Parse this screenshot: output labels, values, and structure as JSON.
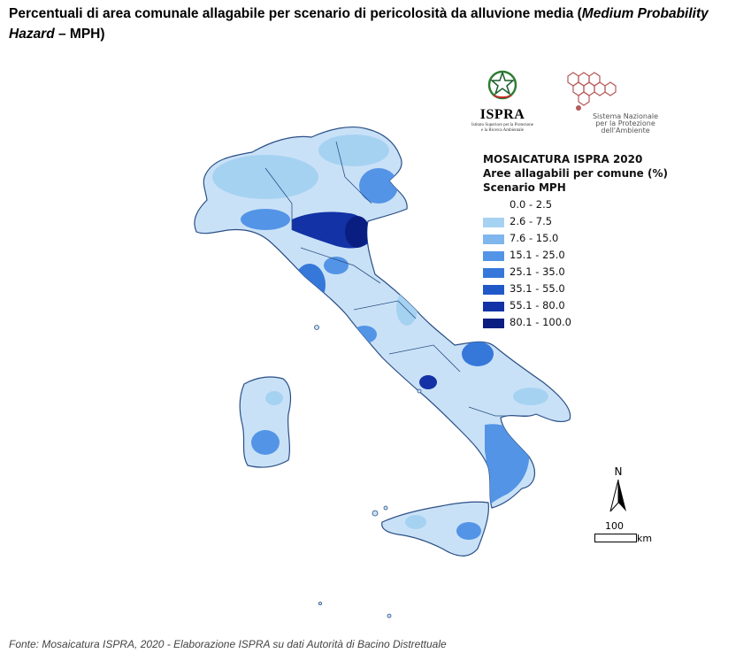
{
  "header": {
    "title_part1": "Percentuali di area comunale allagabile per scenario di pericolosità da alluvione media (",
    "title_italic": "Medium Probability Hazard",
    "title_part2": " – MPH)"
  },
  "logos": {
    "ispra": {
      "name": "ISPRA",
      "subtitle_line1": "Istituto Superiore per la Protezione",
      "subtitle_line2": "e la Ricerca Ambientale",
      "icon": "italian-emblem-icon"
    },
    "snpa": {
      "line1": "Sistema Nazionale",
      "line2": "per la Protezione",
      "line3": "dell'Ambiente",
      "icon": "hexagon-network-icon"
    }
  },
  "legend": {
    "title_line1": "MOSAICATURA ISPRA 2020",
    "title_line2": "Aree allagabili per comune (%)",
    "title_line3": "Scenario MPH",
    "classes": [
      {
        "label": "0.0 - 2.5",
        "color": "#ffffff"
      },
      {
        "label": "2.6 - 7.5",
        "color": "#a6d2f2"
      },
      {
        "label": "7.6 - 15.0",
        "color": "#7fb6ee"
      },
      {
        "label": "15.1 - 25.0",
        "color": "#5394e6"
      },
      {
        "label": "25.1 - 35.0",
        "color": "#3678da"
      },
      {
        "label": "35.1 - 55.0",
        "color": "#2058c8"
      },
      {
        "label": "55.1 - 80.0",
        "color": "#1232a6"
      },
      {
        "label": "80.1 - 100.0",
        "color": "#0a1e82"
      }
    ]
  },
  "map_colors": {
    "base": "#c9e1f7",
    "border": "#2a4f86",
    "pale": "#a6d2f2",
    "mid": "#5394e6",
    "dark": "#1232a6",
    "darkest": "#0a1e82"
  },
  "north_arrow": {
    "label": "N",
    "icon": "north-arrow-icon"
  },
  "scale_bar": {
    "value": "100",
    "unit": "km"
  },
  "footer": {
    "source": "Fonte: Mosaicatura ISPRA, 2020 - Elaborazione ISPRA su dati Autorità di Bacino Distrettuale"
  }
}
